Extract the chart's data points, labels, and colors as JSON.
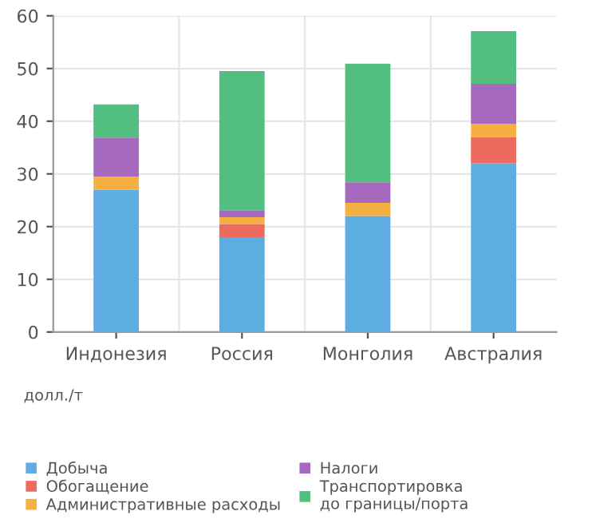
{
  "chart_data": {
    "type": "bar",
    "stacked": true,
    "ylabel": "долл./т",
    "categories": [
      "Индонезия",
      "Россия",
      "Монголия",
      "Австралия"
    ],
    "series": [
      {
        "name": "Добыча",
        "color": "#5dade2",
        "values": [
          27,
          18,
          22,
          32
        ]
      },
      {
        "name": "Обогащение",
        "color": "#ec6b5e",
        "values": [
          0,
          2.5,
          0,
          5
        ]
      },
      {
        "name": "Административные расходы",
        "color": "#f5b041",
        "values": [
          2.5,
          1.3,
          2.5,
          2.5
        ]
      },
      {
        "name": "Налоги",
        "color": "#a569bd",
        "values": [
          7.4,
          1.3,
          3.9,
          7.6
        ]
      },
      {
        "name": "Транспортировка\nдо границы/порта",
        "color": "#52be80",
        "values": [
          6.3,
          26.4,
          22.5,
          10
        ]
      }
    ],
    "ylim": [
      0,
      60
    ],
    "yticks": [
      0,
      10,
      20,
      30,
      40,
      50,
      60
    ],
    "grid": true,
    "legend": "bottom"
  }
}
